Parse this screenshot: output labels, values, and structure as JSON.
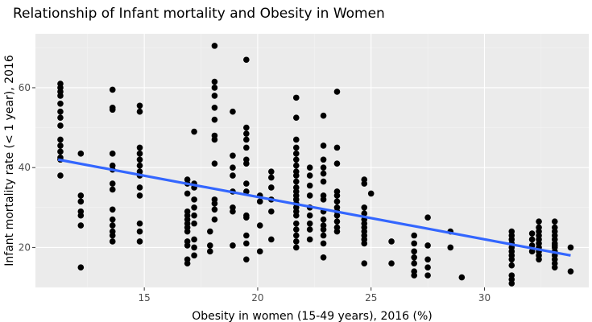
{
  "chart_data": {
    "type": "scatter",
    "title": "Relationship of Infant mortality and Obesity in Women",
    "xlabel": "Obesity in women (15-49 years), 2016 (%)",
    "ylabel": "Infant mortality rate (< 1 year), 2016",
    "xlim": [
      10.2,
      34.6
    ],
    "ylim": [
      10.0,
      73.5
    ],
    "xticks": [
      15,
      20,
      25,
      30
    ],
    "yticks": [
      20,
      40,
      60
    ],
    "grid": true,
    "legend": "none",
    "colors": {
      "panel": "#ebebeb",
      "grid_major": "#ffffff",
      "grid_minor": "#f4f4f4",
      "points": "#000000",
      "trend": "#3366ff"
    },
    "trend_line": {
      "x": [
        11.2,
        33.8
      ],
      "y": [
        42.0,
        18.0
      ]
    },
    "points": [
      [
        11.3,
        61
      ],
      [
        11.3,
        60
      ],
      [
        11.3,
        59
      ],
      [
        11.3,
        58
      ],
      [
        11.3,
        56
      ],
      [
        11.3,
        54
      ],
      [
        11.3,
        52.5
      ],
      [
        11.3,
        50.5
      ],
      [
        11.3,
        47
      ],
      [
        11.3,
        45.5
      ],
      [
        11.3,
        44
      ],
      [
        11.3,
        42.5
      ],
      [
        11.3,
        42
      ],
      [
        11.3,
        38
      ],
      [
        12.2,
        43.5
      ],
      [
        12.2,
        33
      ],
      [
        12.2,
        31.5
      ],
      [
        12.2,
        29
      ],
      [
        12.2,
        28
      ],
      [
        12.2,
        25.5
      ],
      [
        12.2,
        15
      ],
      [
        13.6,
        59.5
      ],
      [
        13.6,
        55
      ],
      [
        13.6,
        54.5
      ],
      [
        13.6,
        43.5
      ],
      [
        13.6,
        40.5
      ],
      [
        13.6,
        39.5
      ],
      [
        13.6,
        36
      ],
      [
        13.6,
        34.5
      ],
      [
        13.6,
        29.5
      ],
      [
        13.6,
        27
      ],
      [
        13.6,
        25.5
      ],
      [
        13.6,
        24
      ],
      [
        13.6,
        23
      ],
      [
        13.6,
        21.5
      ],
      [
        14.8,
        55.5
      ],
      [
        14.8,
        54
      ],
      [
        14.8,
        45
      ],
      [
        14.8,
        43.5
      ],
      [
        14.8,
        42
      ],
      [
        14.8,
        40.5
      ],
      [
        14.8,
        39
      ],
      [
        14.8,
        38
      ],
      [
        14.8,
        35
      ],
      [
        14.8,
        33
      ],
      [
        14.8,
        26
      ],
      [
        14.8,
        24
      ],
      [
        14.8,
        21.5
      ],
      [
        16.9,
        37
      ],
      [
        16.9,
        36
      ],
      [
        16.9,
        33.5
      ],
      [
        16.9,
        29
      ],
      [
        16.9,
        28
      ],
      [
        16.9,
        27
      ],
      [
        16.9,
        26
      ],
      [
        16.9,
        25
      ],
      [
        16.9,
        24
      ],
      [
        16.9,
        21.5
      ],
      [
        16.9,
        20.5
      ],
      [
        16.9,
        17
      ],
      [
        16.9,
        16
      ],
      [
        17.2,
        49
      ],
      [
        17.2,
        36
      ],
      [
        17.2,
        35
      ],
      [
        17.2,
        32
      ],
      [
        17.2,
        30
      ],
      [
        17.2,
        28
      ],
      [
        17.2,
        26
      ],
      [
        17.2,
        22
      ],
      [
        17.2,
        20
      ],
      [
        17.2,
        18
      ],
      [
        17.9,
        24
      ],
      [
        17.9,
        20.5
      ],
      [
        17.9,
        19
      ],
      [
        18.1,
        70.5
      ],
      [
        18.1,
        61.5
      ],
      [
        18.1,
        60
      ],
      [
        18.1,
        58
      ],
      [
        18.1,
        55
      ],
      [
        18.1,
        52
      ],
      [
        18.1,
        48
      ],
      [
        18.1,
        47
      ],
      [
        18.1,
        41
      ],
      [
        18.1,
        32
      ],
      [
        18.1,
        31
      ],
      [
        18.1,
        29.5
      ],
      [
        18.1,
        27
      ],
      [
        18.9,
        54
      ],
      [
        18.9,
        43
      ],
      [
        18.9,
        40
      ],
      [
        18.9,
        38
      ],
      [
        18.9,
        34
      ],
      [
        18.9,
        30
      ],
      [
        18.9,
        29
      ],
      [
        18.9,
        20.5
      ],
      [
        19.5,
        67
      ],
      [
        19.5,
        50
      ],
      [
        19.5,
        48.5
      ],
      [
        19.5,
        47
      ],
      [
        19.5,
        45
      ],
      [
        19.5,
        42
      ],
      [
        19.5,
        41
      ],
      [
        19.5,
        36
      ],
      [
        19.5,
        34
      ],
      [
        19.5,
        28
      ],
      [
        19.5,
        27.5
      ],
      [
        19.5,
        23
      ],
      [
        19.5,
        21
      ],
      [
        19.5,
        17
      ],
      [
        20.1,
        33
      ],
      [
        20.1,
        31.5
      ],
      [
        20.1,
        25.5
      ],
      [
        20.1,
        19
      ],
      [
        20.6,
        39
      ],
      [
        20.6,
        37.5
      ],
      [
        20.6,
        35
      ],
      [
        20.6,
        32
      ],
      [
        20.6,
        29
      ],
      [
        20.6,
        22
      ],
      [
        21.7,
        57.5
      ],
      [
        21.7,
        52.5
      ],
      [
        21.7,
        47
      ],
      [
        21.7,
        45
      ],
      [
        21.7,
        43.5
      ],
      [
        21.7,
        42
      ],
      [
        21.7,
        40.5
      ],
      [
        21.7,
        39
      ],
      [
        21.7,
        38
      ],
      [
        21.7,
        36.5
      ],
      [
        21.7,
        35
      ],
      [
        21.7,
        34
      ],
      [
        21.7,
        33
      ],
      [
        21.7,
        32
      ],
      [
        21.7,
        31
      ],
      [
        21.7,
        30
      ],
      [
        21.7,
        29
      ],
      [
        21.7,
        28
      ],
      [
        21.7,
        26
      ],
      [
        21.7,
        24.5
      ],
      [
        21.7,
        23
      ],
      [
        21.7,
        21.5
      ],
      [
        21.7,
        20
      ],
      [
        22.3,
        40
      ],
      [
        22.3,
        38
      ],
      [
        22.3,
        35.5
      ],
      [
        22.3,
        33
      ],
      [
        22.3,
        30
      ],
      [
        22.3,
        28
      ],
      [
        22.3,
        26
      ],
      [
        22.3,
        24.5
      ],
      [
        22.3,
        22
      ],
      [
        22.9,
        53
      ],
      [
        22.9,
        45.5
      ],
      [
        22.9,
        42
      ],
      [
        22.9,
        40
      ],
      [
        22.9,
        38.5
      ],
      [
        22.9,
        36.5
      ],
      [
        22.9,
        33
      ],
      [
        22.9,
        32
      ],
      [
        22.9,
        29
      ],
      [
        22.9,
        27
      ],
      [
        22.9,
        25.5
      ],
      [
        22.9,
        24.5
      ],
      [
        22.9,
        23
      ],
      [
        22.9,
        21
      ],
      [
        22.9,
        17.5
      ],
      [
        23.5,
        59
      ],
      [
        23.5,
        45
      ],
      [
        23.5,
        41
      ],
      [
        23.5,
        34
      ],
      [
        23.5,
        33
      ],
      [
        23.5,
        31.5
      ],
      [
        23.5,
        30
      ],
      [
        23.5,
        29
      ],
      [
        23.5,
        28
      ],
      [
        23.5,
        26.5
      ],
      [
        23.5,
        25
      ],
      [
        23.5,
        24
      ],
      [
        24.7,
        37
      ],
      [
        24.7,
        36
      ],
      [
        24.7,
        30
      ],
      [
        24.7,
        28.5
      ],
      [
        24.7,
        27
      ],
      [
        24.7,
        26
      ],
      [
        24.7,
        25
      ],
      [
        24.7,
        24
      ],
      [
        24.7,
        23
      ],
      [
        24.7,
        22
      ],
      [
        24.7,
        21
      ],
      [
        24.7,
        16
      ],
      [
        25.0,
        33.5
      ],
      [
        25.9,
        21.5
      ],
      [
        25.9,
        16
      ],
      [
        26.9,
        23
      ],
      [
        26.9,
        21
      ],
      [
        26.9,
        19
      ],
      [
        26.9,
        17.5
      ],
      [
        26.9,
        16
      ],
      [
        26.9,
        14
      ],
      [
        26.9,
        13
      ],
      [
        27.5,
        27.5
      ],
      [
        27.5,
        20.5
      ],
      [
        27.5,
        17
      ],
      [
        27.5,
        15
      ],
      [
        27.5,
        13
      ],
      [
        28.5,
        24
      ],
      [
        28.5,
        20
      ],
      [
        29.0,
        12.5
      ],
      [
        31.2,
        24
      ],
      [
        31.2,
        23
      ],
      [
        31.2,
        22
      ],
      [
        31.2,
        21
      ],
      [
        31.2,
        20
      ],
      [
        31.2,
        19
      ],
      [
        31.2,
        18
      ],
      [
        31.2,
        17
      ],
      [
        31.2,
        15.5
      ],
      [
        31.2,
        13
      ],
      [
        31.2,
        12
      ],
      [
        31.2,
        11
      ],
      [
        32.1,
        23.5
      ],
      [
        32.1,
        22
      ],
      [
        32.1,
        20.5
      ],
      [
        32.1,
        19
      ],
      [
        32.4,
        26.5
      ],
      [
        32.4,
        25
      ],
      [
        32.4,
        24
      ],
      [
        32.4,
        23
      ],
      [
        32.4,
        22
      ],
      [
        32.4,
        21
      ],
      [
        32.4,
        20
      ],
      [
        32.4,
        19
      ],
      [
        32.4,
        18
      ],
      [
        32.4,
        17
      ],
      [
        33.1,
        26.5
      ],
      [
        33.1,
        25
      ],
      [
        33.1,
        24
      ],
      [
        33.1,
        23
      ],
      [
        33.1,
        22
      ],
      [
        33.1,
        21
      ],
      [
        33.1,
        20.5
      ],
      [
        33.1,
        20
      ],
      [
        33.1,
        19
      ],
      [
        33.1,
        18
      ],
      [
        33.1,
        17
      ],
      [
        33.1,
        16
      ],
      [
        33.1,
        15
      ],
      [
        33.8,
        20
      ],
      [
        33.8,
        14
      ]
    ]
  }
}
